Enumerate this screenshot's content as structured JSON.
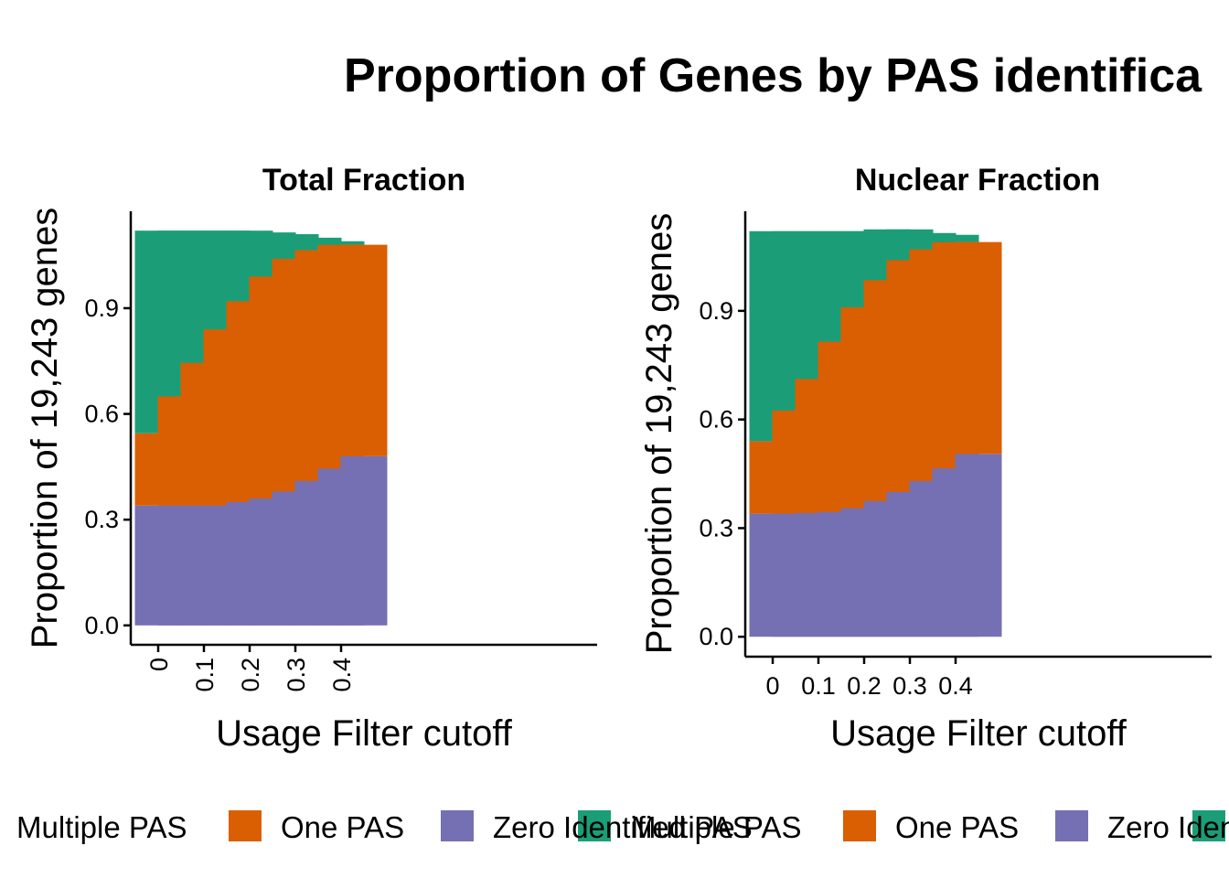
{
  "title": "Proportion of Genes by PAS identifica",
  "colors": {
    "Multiple PAS": "#1b9e77",
    "One PAS": "#d95f02",
    "Zero Identified PAS": "#7570b3"
  },
  "chart_data": [
    {
      "type": "bar",
      "stacked": true,
      "title": "Total Fraction",
      "xlabel": "Usage Filter cutoff",
      "ylabel": "Proportion of 19,243 genes",
      "x": [
        0,
        0.05,
        0.1,
        0.15,
        0.2,
        0.25,
        0.3,
        0.35,
        0.4,
        0.45
      ],
      "xticks": [
        "0",
        "0.1",
        "0.2",
        "0.3",
        "0.4"
      ],
      "yticks": [
        "0.0",
        "0.3",
        "0.6",
        "0.9"
      ],
      "ylim": [
        -0.055,
        1.175
      ],
      "series": [
        {
          "name": "Zero Identified PAS",
          "values": [
            0.34,
            0.34,
            0.34,
            0.34,
            0.35,
            0.36,
            0.38,
            0.41,
            0.445,
            0.48
          ]
        },
        {
          "name": "One PAS",
          "values": [
            0.205,
            0.31,
            0.405,
            0.5,
            0.57,
            0.63,
            0.66,
            0.655,
            0.635,
            0.6
          ]
        },
        {
          "name": "Multiple PAS",
          "values": [
            0.575,
            0.47,
            0.375,
            0.28,
            0.2,
            0.125,
            0.07,
            0.035,
            0.01,
            0.0
          ]
        }
      ]
    },
    {
      "type": "bar",
      "stacked": true,
      "title": "Nuclear Fraction",
      "xlabel": "Usage Filter cutoff",
      "ylabel": "Proportion of 19,243 genes",
      "x": [
        0,
        0.05,
        0.1,
        0.15,
        0.2,
        0.25,
        0.3,
        0.35,
        0.4,
        0.45
      ],
      "xticks": [
        "0",
        "0.1",
        "0.2",
        "0.3",
        "0.4"
      ],
      "yticks": [
        "0.0",
        "0.3",
        "0.6",
        "0.9"
      ],
      "ylim": [
        -0.055,
        1.175
      ],
      "series": [
        {
          "name": "Zero Identified PAS",
          "values": [
            0.34,
            0.34,
            0.342,
            0.345,
            0.355,
            0.375,
            0.4,
            0.43,
            0.465,
            0.505
          ]
        },
        {
          "name": "One PAS",
          "values": [
            0.2,
            0.285,
            0.37,
            0.47,
            0.555,
            0.61,
            0.64,
            0.64,
            0.625,
            0.585
          ]
        },
        {
          "name": "Multiple PAS",
          "values": [
            0.58,
            0.495,
            0.408,
            0.305,
            0.21,
            0.14,
            0.085,
            0.045,
            0.02,
            0.0
          ]
        }
      ]
    }
  ],
  "legends": [
    {
      "items": [
        "Multiple PAS",
        "One PAS",
        "Zero Identified PAS"
      ]
    },
    {
      "items": [
        "Multiple PAS",
        "One PAS",
        "Zero Identified PAS"
      ]
    }
  ]
}
